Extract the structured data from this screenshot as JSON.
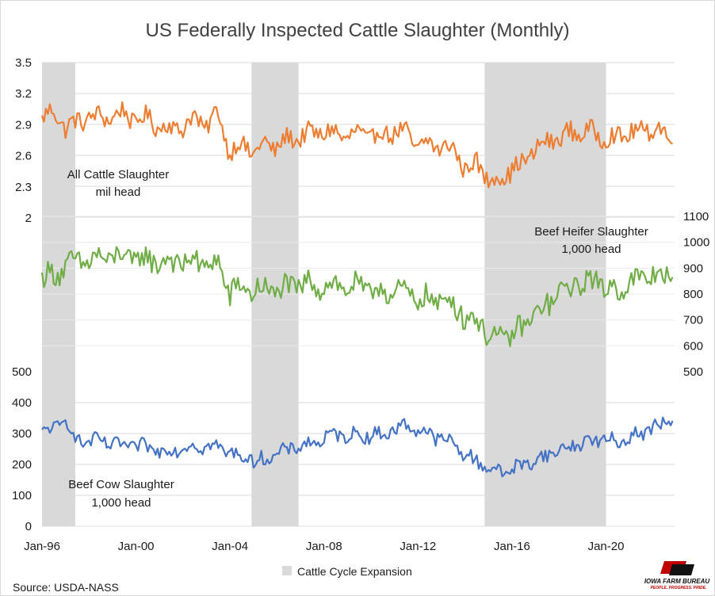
{
  "chart_data": {
    "type": "line",
    "title": "US Federally Inspected Cattle Slaughter (Monthly)",
    "x_start": "Jan-96",
    "x_ticks": [
      "Jan-96",
      "Jan-00",
      "Jan-04",
      "Jan-08",
      "Jan-12",
      "Jan-16",
      "Jan-20"
    ],
    "shaded_regions": [
      {
        "start": "Jan-96",
        "end": "Jun-97"
      },
      {
        "start": "Dec-04",
        "end": "Dec-06"
      },
      {
        "start": "Nov-14",
        "end": "Jan-20"
      }
    ],
    "legend": {
      "label": "Cattle Cycle Expansion",
      "position": "bottom"
    },
    "grid": true,
    "source": "Source: USDA-NASS",
    "logo": {
      "name": "IOWA FARM BUREAU",
      "tagline": "PEOPLE. PROGRESS. PRIDE."
    },
    "panels": [
      {
        "name": "All Cattle Slaughter",
        "label_line1": "All Cattle Slaughter",
        "label_line2": "mil head",
        "axis": "left",
        "ylim": [
          2,
          3.5
        ],
        "yticks": [
          "3.5",
          "3.2",
          "2.9",
          "2.6",
          "2.3",
          "2"
        ],
        "color": "#ed7d31",
        "anchors": [
          [
            "Jan-96",
            2.95
          ],
          [
            "Jul-96",
            3.05
          ],
          [
            "Jan-97",
            2.85
          ],
          [
            "Jul-97",
            2.95
          ],
          [
            "Jan-98",
            2.95
          ],
          [
            "Jul-98",
            3.0
          ],
          [
            "Jan-99",
            2.95
          ],
          [
            "Jul-99",
            3.05
          ],
          [
            "Jan-00",
            2.9
          ],
          [
            "Jul-00",
            3.0
          ],
          [
            "Jan-01",
            2.85
          ],
          [
            "Jul-01",
            2.9
          ],
          [
            "Jan-02",
            2.85
          ],
          [
            "Jul-02",
            3.0
          ],
          [
            "Jan-03",
            2.85
          ],
          [
            "Jul-03",
            3.05
          ],
          [
            "Jan-04",
            2.6
          ],
          [
            "Jul-04",
            2.75
          ],
          [
            "Jan-05",
            2.6
          ],
          [
            "Jul-05",
            2.75
          ],
          [
            "Jan-06",
            2.65
          ],
          [
            "Jul-06",
            2.8
          ],
          [
            "Jan-07",
            2.75
          ],
          [
            "Jul-07",
            2.85
          ],
          [
            "Jan-08",
            2.8
          ],
          [
            "Jul-08",
            2.85
          ],
          [
            "Jan-09",
            2.75
          ],
          [
            "Jul-09",
            2.85
          ],
          [
            "Jan-10",
            2.75
          ],
          [
            "Jul-10",
            2.85
          ],
          [
            "Jan-11",
            2.8
          ],
          [
            "Jul-11",
            2.85
          ],
          [
            "Jan-12",
            2.65
          ],
          [
            "Jul-12",
            2.75
          ],
          [
            "Jan-13",
            2.65
          ],
          [
            "Jul-13",
            2.7
          ],
          [
            "Jan-14",
            2.45
          ],
          [
            "Jul-14",
            2.55
          ],
          [
            "Jan-15",
            2.35
          ],
          [
            "Jul-15",
            2.4
          ],
          [
            "Jan-16",
            2.45
          ],
          [
            "Jul-16",
            2.55
          ],
          [
            "Jan-17",
            2.65
          ],
          [
            "Jul-17",
            2.75
          ],
          [
            "Jan-18",
            2.75
          ],
          [
            "Jul-18",
            2.85
          ],
          [
            "Jan-19",
            2.8
          ],
          [
            "Jul-19",
            2.85
          ],
          [
            "Jan-20",
            2.75
          ],
          [
            "Jul-20",
            2.8
          ],
          [
            "Jan-21",
            2.8
          ],
          [
            "Jul-21",
            2.85
          ],
          [
            "Jan-22",
            2.85
          ],
          [
            "Jul-22",
            2.85
          ],
          [
            "Nov-22",
            2.7
          ]
        ]
      },
      {
        "name": "Beef Heifer Slaughter",
        "label_line1": "Beef Heifer Slaughter",
        "label_line2": "1,000 head",
        "axis": "right",
        "ylim": [
          500,
          1100
        ],
        "yticks": [
          "1100",
          "1000",
          "900",
          "800",
          "700",
          "600",
          "500"
        ],
        "color": "#70ad47",
        "anchors": [
          [
            "Jan-96",
            860
          ],
          [
            "Jul-96",
            880
          ],
          [
            "Jan-97",
            900
          ],
          [
            "Jul-97",
            930
          ],
          [
            "Jan-98",
            920
          ],
          [
            "Jul-98",
            950
          ],
          [
            "Jan-99",
            930
          ],
          [
            "Jul-99",
            960
          ],
          [
            "Jan-00",
            920
          ],
          [
            "Jul-00",
            950
          ],
          [
            "Jan-01",
            910
          ],
          [
            "Jul-01",
            940
          ],
          [
            "Jan-02",
            910
          ],
          [
            "Jul-02",
            940
          ],
          [
            "Jan-03",
            900
          ],
          [
            "Jul-03",
            930
          ],
          [
            "Jan-04",
            790
          ],
          [
            "Jul-04",
            840
          ],
          [
            "Jan-05",
            800
          ],
          [
            "Jul-05",
            830
          ],
          [
            "Jan-06",
            800
          ],
          [
            "Jul-06",
            840
          ],
          [
            "Jan-07",
            820
          ],
          [
            "Jul-07",
            850
          ],
          [
            "Jan-08",
            820
          ],
          [
            "Jul-08",
            850
          ],
          [
            "Jan-09",
            810
          ],
          [
            "Jul-09",
            840
          ],
          [
            "Jan-10",
            800
          ],
          [
            "Jul-10",
            830
          ],
          [
            "Jan-11",
            790
          ],
          [
            "Jul-11",
            820
          ],
          [
            "Jan-12",
            770
          ],
          [
            "Jul-12",
            790
          ],
          [
            "Jan-13",
            760
          ],
          [
            "Jul-13",
            780
          ],
          [
            "Jan-14",
            700
          ],
          [
            "Jul-14",
            710
          ],
          [
            "Jan-15",
            640
          ],
          [
            "Jul-15",
            630
          ],
          [
            "Jan-16",
            640
          ],
          [
            "Jul-16",
            680
          ],
          [
            "Jan-17",
            720
          ],
          [
            "Jul-17",
            760
          ],
          [
            "Jan-18",
            800
          ],
          [
            "Jul-18",
            830
          ],
          [
            "Jan-19",
            840
          ],
          [
            "Jul-19",
            860
          ],
          [
            "Jan-20",
            820
          ],
          [
            "Jul-20",
            820
          ],
          [
            "Jan-21",
            840
          ],
          [
            "Jul-21",
            860
          ],
          [
            "Jan-22",
            870
          ],
          [
            "Jul-22",
            880
          ],
          [
            "Nov-22",
            850
          ]
        ]
      },
      {
        "name": "Beef Cow Slaughter",
        "label_line1": "Beef Cow Slaughter",
        "label_line2": "1,000 head",
        "axis": "left",
        "ylim": [
          0,
          500
        ],
        "yticks": [
          "500",
          "400",
          "300",
          "200",
          "100",
          "0"
        ],
        "color": "#4472c4",
        "anchors": [
          [
            "Jan-96",
            300
          ],
          [
            "Jul-96",
            320
          ],
          [
            "Jan-97",
            340
          ],
          [
            "Jul-97",
            280
          ],
          [
            "Jan-98",
            270
          ],
          [
            "Jul-98",
            280
          ],
          [
            "Jan-99",
            260
          ],
          [
            "Jul-99",
            265
          ],
          [
            "Jan-00",
            255
          ],
          [
            "Jul-00",
            260
          ],
          [
            "Jan-01",
            240
          ],
          [
            "Jul-01",
            250
          ],
          [
            "Jan-02",
            250
          ],
          [
            "Jul-02",
            265
          ],
          [
            "Jan-03",
            255
          ],
          [
            "Jul-03",
            260
          ],
          [
            "Jan-04",
            235
          ],
          [
            "Jul-04",
            230
          ],
          [
            "Jan-05",
            210
          ],
          [
            "Jul-05",
            220
          ],
          [
            "Jan-06",
            230
          ],
          [
            "Jul-06",
            250
          ],
          [
            "Jan-07",
            260
          ],
          [
            "Jul-07",
            270
          ],
          [
            "Jan-08",
            280
          ],
          [
            "Jul-08",
            300
          ],
          [
            "Jan-09",
            290
          ],
          [
            "Jul-09",
            300
          ],
          [
            "Jan-10",
            290
          ],
          [
            "Jul-10",
            300
          ],
          [
            "Jan-11",
            310
          ],
          [
            "Jul-11",
            330
          ],
          [
            "Jan-12",
            310
          ],
          [
            "Jul-12",
            300
          ],
          [
            "Jan-13",
            280
          ],
          [
            "Jul-13",
            270
          ],
          [
            "Jan-14",
            230
          ],
          [
            "Jul-14",
            210
          ],
          [
            "Jan-15",
            190
          ],
          [
            "Jul-15",
            175
          ],
          [
            "Jan-16",
            185
          ],
          [
            "Jul-16",
            200
          ],
          [
            "Jan-17",
            215
          ],
          [
            "Jul-17",
            230
          ],
          [
            "Jan-18",
            245
          ],
          [
            "Jul-18",
            260
          ],
          [
            "Jan-19",
            270
          ],
          [
            "Jul-19",
            280
          ],
          [
            "Jan-20",
            280
          ],
          [
            "Jul-20",
            270
          ],
          [
            "Jan-21",
            290
          ],
          [
            "Jul-21",
            300
          ],
          [
            "Jan-22",
            320
          ],
          [
            "Jul-22",
            335
          ],
          [
            "Nov-22",
            330
          ]
        ]
      }
    ]
  }
}
